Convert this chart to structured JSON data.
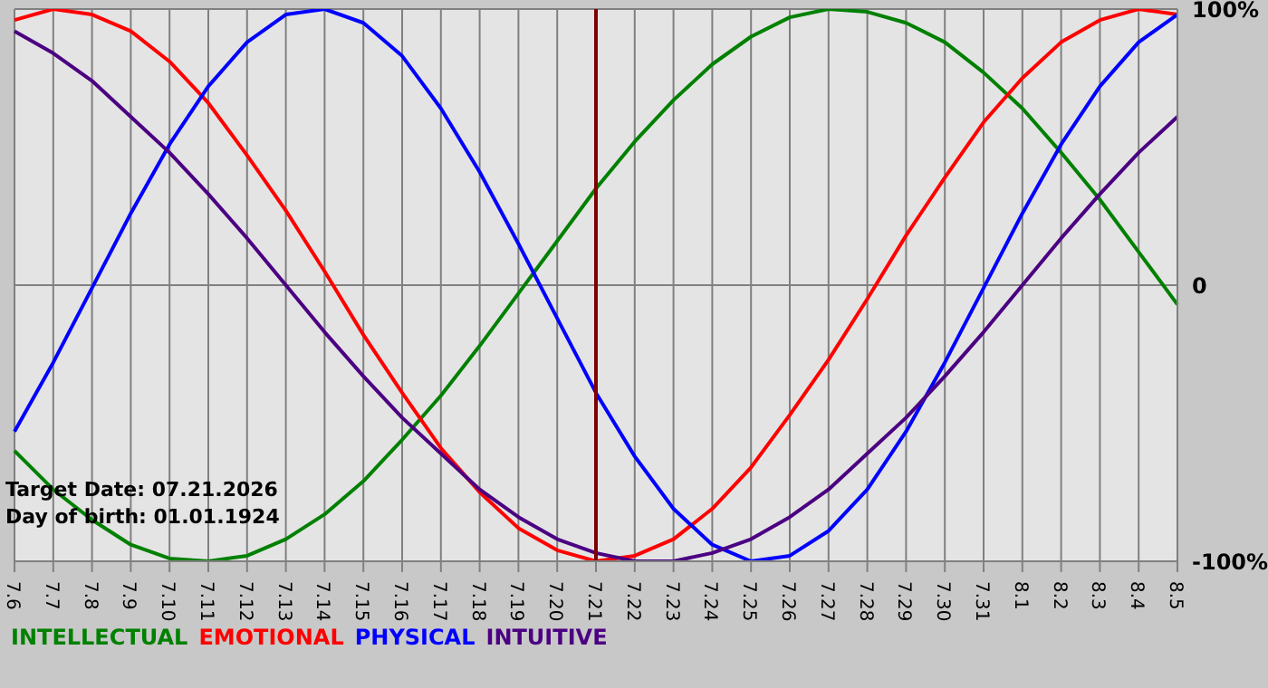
{
  "chart_data": {
    "type": "line",
    "categories": [
      "7.6",
      "7.7",
      "7.8",
      "7.9",
      "7.10",
      "7.11",
      "7.12",
      "7.13",
      "7.14",
      "7.15",
      "7.16",
      "7.17",
      "7.18",
      "7.19",
      "7.20",
      "7.21",
      "7.22",
      "7.23",
      "7.24",
      "7.25",
      "7.26",
      "7.27",
      "7.28",
      "7.29",
      "7.30",
      "7.31",
      "8.1",
      "8.2",
      "8.3",
      "8.4",
      "8.5"
    ],
    "series": [
      {
        "name": "INTELLECTUAL",
        "color": "#008000",
        "values": [
          -60,
          -74,
          -85,
          -94,
          -99,
          -100,
          -98,
          -92,
          -83,
          -71,
          -56,
          -40,
          -22,
          -3,
          16,
          35,
          52,
          67,
          80,
          90,
          97,
          100,
          99,
          95,
          88,
          77,
          64,
          48,
          31,
          12,
          -7
        ]
      },
      {
        "name": "EMOTIONAL",
        "color": "#ff0000",
        "values": [
          96,
          100,
          98,
          92,
          81,
          66,
          47,
          27,
          5,
          -18,
          -39,
          -59,
          -75,
          -88,
          -96,
          -100,
          -98,
          -92,
          -81,
          -66,
          -47,
          -27,
          -5,
          18,
          39,
          59,
          75,
          88,
          96,
          100,
          98
        ]
      },
      {
        "name": "PHYSICAL",
        "color": "#0000ff",
        "values": [
          -53,
          -28,
          -1,
          26,
          51,
          72,
          88,
          98,
          100,
          95,
          83,
          64,
          41,
          15,
          -12,
          -39,
          -62,
          -81,
          -94,
          -100,
          -98,
          -89,
          -74,
          -53,
          -28,
          -1,
          26,
          51,
          72,
          88,
          98
        ]
      },
      {
        "name": "INTUITIVE",
        "color": "#4b0082",
        "values": [
          92,
          84,
          74,
          61,
          48,
          33,
          17,
          0,
          -17,
          -33,
          -48,
          -61,
          -74,
          -84,
          -92,
          -97,
          -100,
          -100,
          -97,
          -92,
          -84,
          -74,
          -61,
          -48,
          -33,
          -17,
          0,
          17,
          33,
          48,
          61
        ]
      }
    ],
    "ylim": [
      -100,
      100
    ],
    "yticks": [
      {
        "value": -100,
        "label": "-100%"
      },
      {
        "value": 0,
        "label": "0"
      },
      {
        "value": 100,
        "label": "100%"
      }
    ],
    "grid": true,
    "legend": "bottom",
    "marker": "none",
    "line_style": "solid",
    "ref_lines": [
      {
        "axis": "x",
        "value": "7.21",
        "color": "#800000"
      }
    ],
    "annotations": [
      "Target Date: 07.21.2026",
      "Day of birth: 01.01.1924"
    ]
  }
}
